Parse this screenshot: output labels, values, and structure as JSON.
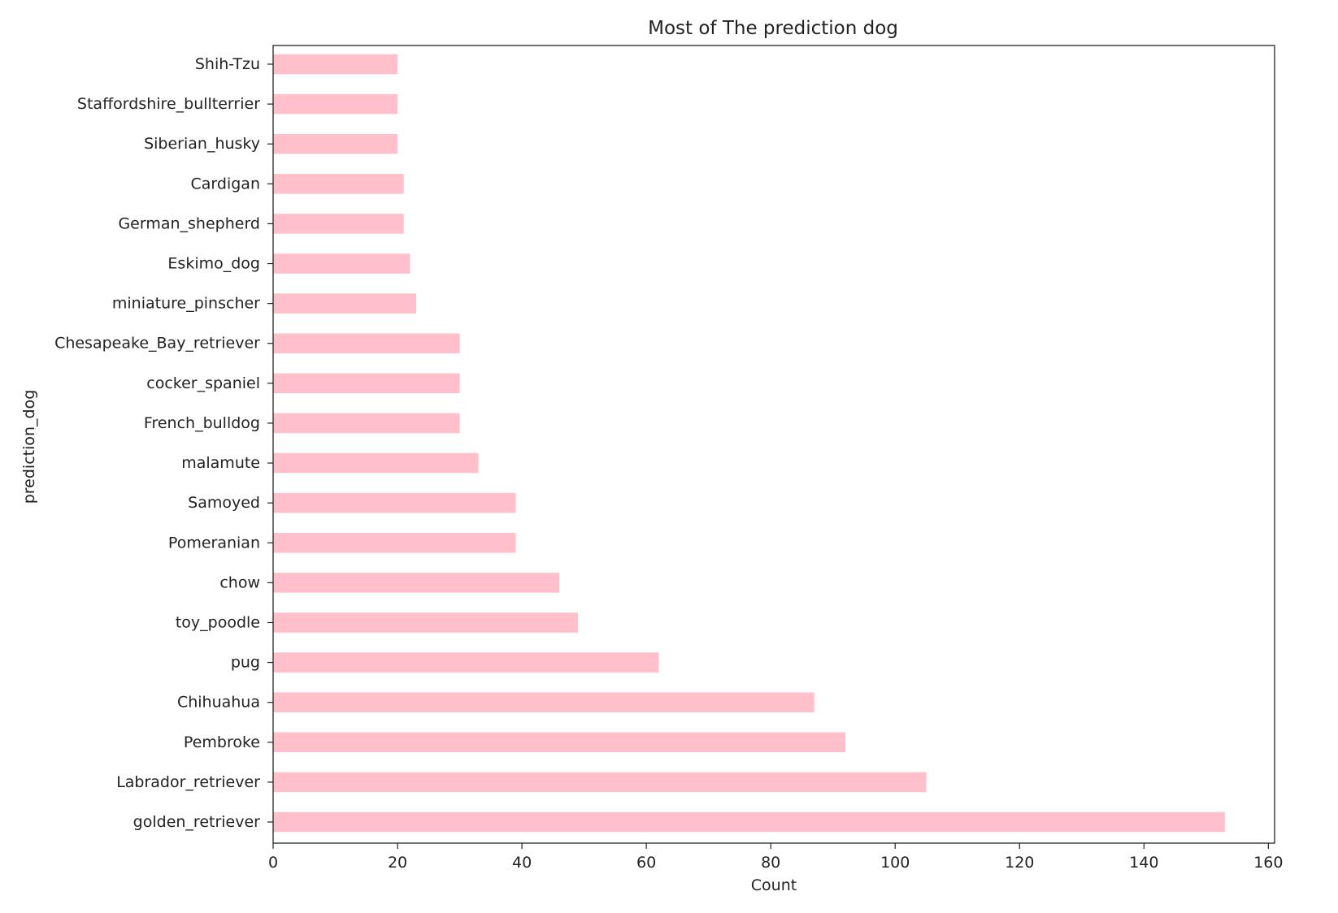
{
  "chart_data": {
    "type": "bar",
    "orientation": "horizontal",
    "title": "Most of The prediction dog",
    "xlabel": "Count",
    "ylabel": "prediction_dog",
    "xlim": [
      0,
      161
    ],
    "xticks": [
      0,
      20,
      40,
      60,
      80,
      100,
      120,
      140,
      160
    ],
    "grid": false,
    "bar_color": "#ffc0cb",
    "categories": [
      "golden_retriever",
      "Labrador_retriever",
      "Pembroke",
      "Chihuahua",
      "pug",
      "toy_poodle",
      "chow",
      "Pomeranian",
      "Samoyed",
      "malamute",
      "French_bulldog",
      "cocker_spaniel",
      "Chesapeake_Bay_retriever",
      "miniature_pinscher",
      "Eskimo_dog",
      "German_shepherd",
      "Cardigan",
      "Siberian_husky",
      "Staffordshire_bullterrier",
      "Shih-Tzu"
    ],
    "values": [
      153,
      105,
      92,
      87,
      62,
      49,
      46,
      39,
      39,
      33,
      30,
      30,
      30,
      23,
      22,
      21,
      21,
      20,
      20,
      20
    ]
  }
}
